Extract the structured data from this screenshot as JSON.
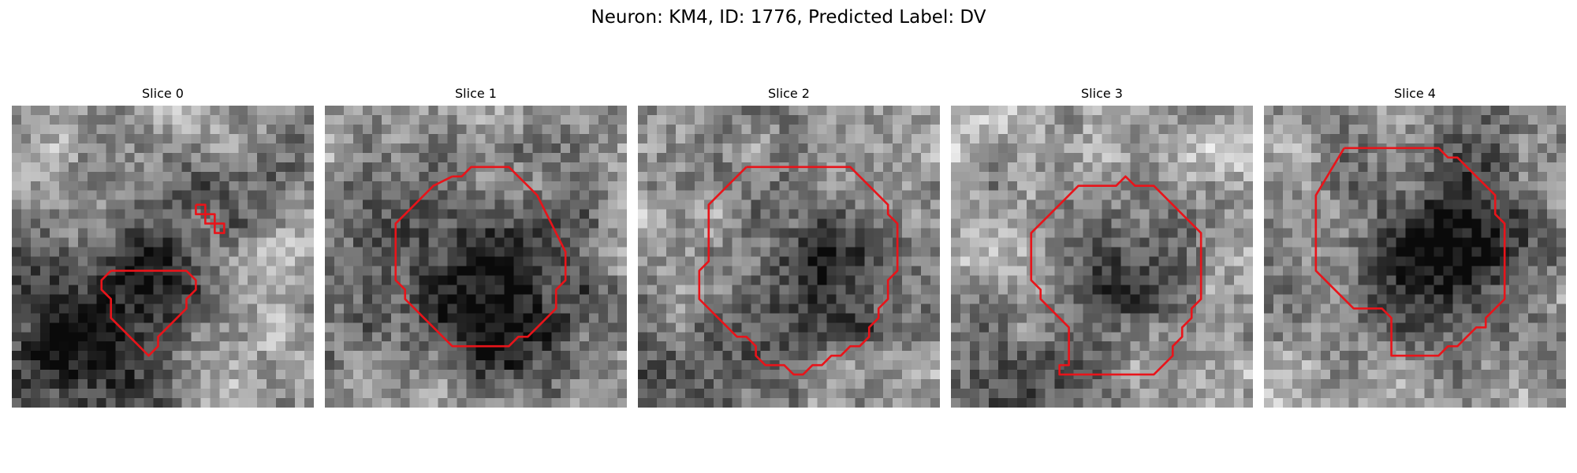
{
  "title": "Neuron: KM4, ID: 1776, Predicted Label: DV",
  "contour_color": "#e8141a",
  "grid_size": 32,
  "panels": [
    {
      "label": "Slice 0",
      "seed": 11,
      "base": 0.66,
      "dark_blobs": [
        {
          "cx": 7,
          "cy": 24,
          "r": 7,
          "depth": 0.55
        },
        {
          "cx": 17,
          "cy": 12,
          "r": 5.5,
          "depth": 0.32
        },
        {
          "cx": 15,
          "cy": 18,
          "r": 3.5,
          "depth": 0.18
        },
        {
          "cx": 30,
          "cy": 5,
          "r": 4,
          "depth": 0.2
        }
      ],
      "contours": [
        [
          [
            10.5,
            17.5
          ],
          [
            14.5,
            17.5
          ],
          [
            18.5,
            17.5
          ],
          [
            19.5,
            18.5
          ],
          [
            19.5,
            19.5
          ],
          [
            18.5,
            20.5
          ],
          [
            18.5,
            21.5
          ],
          [
            16.5,
            23.5
          ],
          [
            15.5,
            24.5
          ],
          [
            15.5,
            25.5
          ],
          [
            14.5,
            26.5
          ],
          [
            13.5,
            25.5
          ],
          [
            10.5,
            22.5
          ],
          [
            10.5,
            20.5
          ],
          [
            9.5,
            19.5
          ],
          [
            9.5,
            18.5
          ],
          [
            10.5,
            17.5
          ]
        ],
        [
          [
            19.5,
            10.5
          ],
          [
            20.5,
            10.5
          ],
          [
            20.5,
            11.5
          ],
          [
            19.5,
            11.5
          ],
          [
            19.5,
            10.5
          ]
        ],
        [
          [
            20.5,
            11.5
          ],
          [
            21.5,
            11.5
          ],
          [
            21.5,
            12.5
          ],
          [
            20.5,
            12.5
          ],
          [
            20.5,
            11.5
          ]
        ],
        [
          [
            21.5,
            12.5
          ],
          [
            22.5,
            12.5
          ],
          [
            22.5,
            13.5
          ],
          [
            21.5,
            13.5
          ],
          [
            21.5,
            12.5
          ]
        ]
      ]
    },
    {
      "label": "Slice 1",
      "seed": 23,
      "base": 0.63,
      "dark_blobs": [
        {
          "cx": 17,
          "cy": 18,
          "r": 10,
          "depth": 0.32
        },
        {
          "cx": 18,
          "cy": 20,
          "r": 5,
          "depth": 0.28
        },
        {
          "cx": 10,
          "cy": 13,
          "r": 3,
          "depth": 0.15
        }
      ],
      "contours": [
        [
          [
            13.5,
            7.5
          ],
          [
            14.5,
            7.5
          ],
          [
            15.5,
            6.5
          ],
          [
            19.5,
            6.5
          ],
          [
            20.5,
            7.5
          ],
          [
            21.5,
            8.5
          ],
          [
            22.5,
            9.5
          ],
          [
            23.5,
            11.5
          ],
          [
            24.5,
            13.5
          ],
          [
            25.5,
            15.5
          ],
          [
            25.5,
            18.5
          ],
          [
            24.5,
            19.5
          ],
          [
            24.5,
            21.5
          ],
          [
            23.5,
            22.5
          ],
          [
            22.5,
            23.5
          ],
          [
            21.5,
            24.5
          ],
          [
            20.5,
            24.5
          ],
          [
            19.5,
            25.5
          ],
          [
            13.5,
            25.5
          ],
          [
            12.5,
            24.5
          ],
          [
            10.5,
            22.5
          ],
          [
            9.5,
            21.5
          ],
          [
            8.5,
            20.5
          ],
          [
            8.5,
            19.5
          ],
          [
            7.5,
            18.5
          ],
          [
            7.5,
            12.5
          ],
          [
            8.5,
            11.5
          ],
          [
            9.5,
            10.5
          ],
          [
            10.5,
            9.5
          ],
          [
            11.5,
            8.5
          ],
          [
            13.5,
            7.5
          ]
        ]
      ]
    },
    {
      "label": "Slice 2",
      "seed": 37,
      "base": 0.64,
      "dark_blobs": [
        {
          "cx": 20,
          "cy": 18,
          "r": 7,
          "depth": 0.42
        },
        {
          "cx": 4,
          "cy": 29,
          "r": 6,
          "depth": 0.3
        },
        {
          "cx": 2,
          "cy": 5,
          "r": 4,
          "depth": 0.12
        }
      ],
      "contours": [
        [
          [
            11.5,
            6.5
          ],
          [
            22.5,
            6.5
          ],
          [
            24.5,
            8.5
          ],
          [
            26.5,
            10.5
          ],
          [
            26.5,
            11.5
          ],
          [
            27.5,
            12.5
          ],
          [
            27.5,
            17.5
          ],
          [
            26.5,
            18.5
          ],
          [
            26.5,
            20.5
          ],
          [
            25.5,
            21.5
          ],
          [
            25.5,
            22.5
          ],
          [
            24.5,
            23.5
          ],
          [
            24.5,
            24.5
          ],
          [
            23.5,
            25.5
          ],
          [
            22.5,
            25.5
          ],
          [
            21.5,
            26.5
          ],
          [
            20.5,
            26.5
          ],
          [
            19.5,
            27.5
          ],
          [
            18.5,
            27.5
          ],
          [
            17.5,
            28.5
          ],
          [
            16.5,
            28.5
          ],
          [
            15.5,
            27.5
          ],
          [
            13.5,
            27.5
          ],
          [
            12.5,
            26.5
          ],
          [
            12.5,
            25.5
          ],
          [
            11.5,
            24.5
          ],
          [
            10.5,
            24.5
          ],
          [
            8.5,
            22.5
          ],
          [
            6.5,
            20.5
          ],
          [
            6.5,
            17.5
          ],
          [
            7.5,
            16.5
          ],
          [
            7.5,
            10.5
          ],
          [
            9.5,
            8.5
          ],
          [
            11.5,
            6.5
          ]
        ]
      ]
    },
    {
      "label": "Slice 3",
      "seed": 41,
      "base": 0.68,
      "dark_blobs": [
        {
          "cx": 19,
          "cy": 18,
          "r": 7,
          "depth": 0.38
        },
        {
          "cx": 3,
          "cy": 29,
          "r": 6,
          "depth": 0.4
        },
        {
          "cx": 10,
          "cy": 5,
          "r": 4,
          "depth": 0.15
        }
      ],
      "contours": [
        [
          [
            16.5,
            8.5
          ],
          [
            17.5,
            8.5
          ],
          [
            18.5,
            7.5
          ],
          [
            19.5,
            8.5
          ],
          [
            21.5,
            8.5
          ],
          [
            22.5,
            9.5
          ],
          [
            24.5,
            11.5
          ],
          [
            26.5,
            13.5
          ],
          [
            26.5,
            20.5
          ],
          [
            25.5,
            21.5
          ],
          [
            25.5,
            22.5
          ],
          [
            24.5,
            23.5
          ],
          [
            24.5,
            24.5
          ],
          [
            23.5,
            25.5
          ],
          [
            23.5,
            26.5
          ],
          [
            22.5,
            27.5
          ],
          [
            21.5,
            28.5
          ],
          [
            11.5,
            28.5
          ],
          [
            11.5,
            27.5
          ],
          [
            12.5,
            27.5
          ],
          [
            12.5,
            23.5
          ],
          [
            11.5,
            22.5
          ],
          [
            10.5,
            21.5
          ],
          [
            9.5,
            20.5
          ],
          [
            9.5,
            19.5
          ],
          [
            8.5,
            18.5
          ],
          [
            8.5,
            13.5
          ],
          [
            10.5,
            11.5
          ],
          [
            13.5,
            8.5
          ],
          [
            16.5,
            8.5
          ]
        ]
      ]
    },
    {
      "label": "Slice 4",
      "seed": 53,
      "base": 0.66,
      "dark_blobs": [
        {
          "cx": 18,
          "cy": 16,
          "r": 9,
          "depth": 0.38
        },
        {
          "cx": 20,
          "cy": 14,
          "r": 4,
          "depth": 0.22
        },
        {
          "cx": 25,
          "cy": 4,
          "r": 3,
          "depth": 0.12
        }
      ],
      "contours": [
        [
          [
            8.5,
            4.5
          ],
          [
            18.5,
            4.5
          ],
          [
            19.5,
            5.5
          ],
          [
            20.5,
            5.5
          ],
          [
            22.5,
            7.5
          ],
          [
            23.5,
            8.5
          ],
          [
            24.5,
            9.5
          ],
          [
            24.5,
            11.5
          ],
          [
            25.5,
            12.5
          ],
          [
            25.5,
            20.5
          ],
          [
            24.5,
            21.5
          ],
          [
            23.5,
            22.5
          ],
          [
            23.5,
            23.5
          ],
          [
            22.5,
            23.5
          ],
          [
            21.5,
            24.5
          ],
          [
            20.5,
            25.5
          ],
          [
            19.5,
            25.5
          ],
          [
            18.5,
            26.5
          ],
          [
            13.5,
            26.5
          ],
          [
            13.5,
            25.5
          ],
          [
            13.5,
            22.5
          ],
          [
            12.5,
            21.5
          ],
          [
            9.5,
            21.5
          ],
          [
            7.5,
            19.5
          ],
          [
            5.5,
            17.5
          ],
          [
            5.5,
            9.5
          ],
          [
            8.5,
            4.5
          ]
        ]
      ]
    }
  ]
}
